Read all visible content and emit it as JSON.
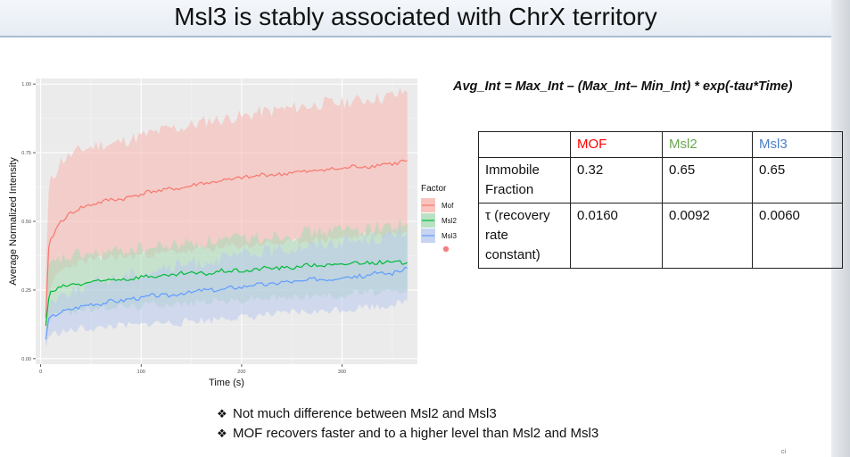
{
  "slide": {
    "title": "Msl3 is stably associated with ChrX territory",
    "formula": "Avg_Int = Max_Int – (Max_Int– Min_Int) * exp(-tau*Time)",
    "bullets": [
      "Not much difference between Msl2 and Msl3",
      "MOF recovers faster and to a higher level than Msl2 and Msl3"
    ],
    "corner_mark": "ci"
  },
  "table": {
    "headers": [
      "",
      "MOF",
      "Msl2",
      "Msl3"
    ],
    "header_colors": [
      "#111111",
      "#ff0000",
      "#6aa84f",
      "#4a7fc8"
    ],
    "rows": [
      {
        "label": [
          "Immobile",
          "Fraction"
        ],
        "values": [
          "0.32",
          "0.65",
          "0.65"
        ]
      },
      {
        "label": [
          "τ (recovery",
          "rate",
          "constant)"
        ],
        "values": [
          "0.0160",
          "0.0092",
          "0.0060"
        ]
      }
    ]
  },
  "chart_data": {
    "type": "line",
    "xlabel": "Time (s)",
    "ylabel": "Average Normalized Intensity",
    "xlim": [
      -5,
      375
    ],
    "ylim": [
      -0.02,
      1.02
    ],
    "xticks": [
      0,
      100,
      200,
      300
    ],
    "yticks": [
      0.0,
      0.25,
      0.5,
      0.75,
      1.0
    ],
    "ytick_labels": [
      "0.00",
      "0.25",
      "0.50",
      "0.75",
      "1.00"
    ],
    "grid": true,
    "legend": {
      "title": "Factor",
      "position": "right"
    },
    "series": [
      {
        "name": "Mof",
        "color": "#f8766d",
        "band_color": "#f8b4ad",
        "x": [
          5,
          8,
          10,
          15,
          20,
          30,
          40,
          50,
          60,
          70,
          80,
          90,
          100,
          110,
          120,
          130,
          140,
          150,
          160,
          170,
          180,
          190,
          200,
          210,
          220,
          230,
          240,
          250,
          260,
          270,
          280,
          290,
          300,
          310,
          320,
          330,
          340,
          350,
          355,
          360,
          365
        ],
        "y": [
          0.15,
          0.4,
          0.43,
          0.47,
          0.5,
          0.53,
          0.55,
          0.56,
          0.57,
          0.58,
          0.58,
          0.59,
          0.6,
          0.61,
          0.61,
          0.62,
          0.62,
          0.63,
          0.64,
          0.64,
          0.65,
          0.65,
          0.66,
          0.66,
          0.67,
          0.67,
          0.67,
          0.68,
          0.68,
          0.68,
          0.69,
          0.69,
          0.69,
          0.7,
          0.7,
          0.7,
          0.71,
          0.71,
          0.71,
          0.72,
          0.72
        ],
        "lower": [
          0.1,
          0.22,
          0.25,
          0.3,
          0.32,
          0.34,
          0.35,
          0.36,
          0.36,
          0.37,
          0.37,
          0.37,
          0.38,
          0.38,
          0.38,
          0.39,
          0.39,
          0.39,
          0.4,
          0.4,
          0.4,
          0.41,
          0.41,
          0.41,
          0.42,
          0.42,
          0.42,
          0.42,
          0.43,
          0.43,
          0.43,
          0.44,
          0.44,
          0.44,
          0.45,
          0.45,
          0.45,
          0.45,
          0.46,
          0.46,
          0.46
        ],
        "upper": [
          0.3,
          0.6,
          0.65,
          0.68,
          0.72,
          0.74,
          0.76,
          0.77,
          0.78,
          0.78,
          0.79,
          0.8,
          0.81,
          0.82,
          0.83,
          0.84,
          0.84,
          0.85,
          0.86,
          0.87,
          0.87,
          0.88,
          0.88,
          0.89,
          0.9,
          0.9,
          0.91,
          0.91,
          0.92,
          0.92,
          0.93,
          0.93,
          0.93,
          0.94,
          0.94,
          0.95,
          0.95,
          0.96,
          0.96,
          0.97,
          0.97
        ]
      },
      {
        "name": "Msl2",
        "color": "#00ba38",
        "band_color": "#a8dbb5",
        "x": [
          5,
          8,
          10,
          15,
          20,
          30,
          40,
          50,
          60,
          70,
          80,
          90,
          100,
          110,
          120,
          130,
          140,
          150,
          160,
          170,
          180,
          190,
          200,
          210,
          220,
          230,
          240,
          250,
          260,
          270,
          280,
          290,
          300,
          310,
          320,
          330,
          340,
          350,
          355,
          360,
          365
        ],
        "y": [
          0.12,
          0.22,
          0.24,
          0.25,
          0.26,
          0.27,
          0.27,
          0.28,
          0.28,
          0.29,
          0.29,
          0.29,
          0.3,
          0.3,
          0.3,
          0.3,
          0.31,
          0.31,
          0.31,
          0.31,
          0.32,
          0.32,
          0.32,
          0.32,
          0.33,
          0.33,
          0.33,
          0.33,
          0.34,
          0.34,
          0.34,
          0.34,
          0.34,
          0.35,
          0.35,
          0.35,
          0.35,
          0.35,
          0.35,
          0.35,
          0.35
        ],
        "lower": [
          0.08,
          0.14,
          0.15,
          0.16,
          0.17,
          0.17,
          0.18,
          0.18,
          0.18,
          0.19,
          0.19,
          0.19,
          0.19,
          0.2,
          0.2,
          0.2,
          0.2,
          0.2,
          0.21,
          0.21,
          0.21,
          0.21,
          0.21,
          0.22,
          0.22,
          0.22,
          0.22,
          0.22,
          0.23,
          0.23,
          0.23,
          0.23,
          0.23,
          0.24,
          0.24,
          0.24,
          0.24,
          0.24,
          0.24,
          0.24,
          0.24
        ],
        "upper": [
          0.18,
          0.32,
          0.34,
          0.35,
          0.36,
          0.37,
          0.38,
          0.38,
          0.38,
          0.39,
          0.39,
          0.4,
          0.4,
          0.4,
          0.41,
          0.41,
          0.42,
          0.42,
          0.42,
          0.43,
          0.43,
          0.43,
          0.44,
          0.44,
          0.44,
          0.45,
          0.45,
          0.45,
          0.46,
          0.46,
          0.46,
          0.47,
          0.47,
          0.47,
          0.47,
          0.48,
          0.48,
          0.48,
          0.49,
          0.49,
          0.49
        ]
      },
      {
        "name": "Msl3",
        "color": "#619cff",
        "band_color": "#b9c9ee",
        "x": [
          5,
          8,
          10,
          15,
          20,
          30,
          40,
          50,
          60,
          70,
          80,
          90,
          100,
          110,
          120,
          130,
          140,
          150,
          160,
          170,
          180,
          190,
          200,
          210,
          220,
          230,
          240,
          250,
          260,
          270,
          280,
          290,
          300,
          310,
          320,
          330,
          340,
          350,
          355,
          360,
          365
        ],
        "y": [
          0.07,
          0.14,
          0.15,
          0.16,
          0.17,
          0.18,
          0.19,
          0.2,
          0.2,
          0.21,
          0.21,
          0.22,
          0.22,
          0.23,
          0.23,
          0.23,
          0.24,
          0.24,
          0.25,
          0.25,
          0.25,
          0.26,
          0.26,
          0.27,
          0.27,
          0.27,
          0.28,
          0.28,
          0.28,
          0.29,
          0.29,
          0.29,
          0.3,
          0.3,
          0.3,
          0.31,
          0.31,
          0.31,
          0.32,
          0.32,
          0.33
        ],
        "lower": [
          0.04,
          0.08,
          0.09,
          0.09,
          0.1,
          0.1,
          0.11,
          0.11,
          0.11,
          0.12,
          0.12,
          0.12,
          0.12,
          0.13,
          0.13,
          0.13,
          0.13,
          0.14,
          0.14,
          0.14,
          0.15,
          0.15,
          0.15,
          0.15,
          0.16,
          0.16,
          0.16,
          0.17,
          0.17,
          0.17,
          0.17,
          0.18,
          0.18,
          0.18,
          0.19,
          0.19,
          0.19,
          0.2,
          0.2,
          0.2,
          0.21
        ],
        "upper": [
          0.1,
          0.2,
          0.21,
          0.22,
          0.23,
          0.25,
          0.26,
          0.27,
          0.28,
          0.29,
          0.3,
          0.31,
          0.31,
          0.32,
          0.33,
          0.33,
          0.34,
          0.35,
          0.35,
          0.36,
          0.36,
          0.37,
          0.38,
          0.38,
          0.39,
          0.39,
          0.4,
          0.4,
          0.41,
          0.41,
          0.42,
          0.42,
          0.43,
          0.43,
          0.43,
          0.44,
          0.44,
          0.45,
          0.45,
          0.46,
          0.46
        ]
      }
    ]
  }
}
